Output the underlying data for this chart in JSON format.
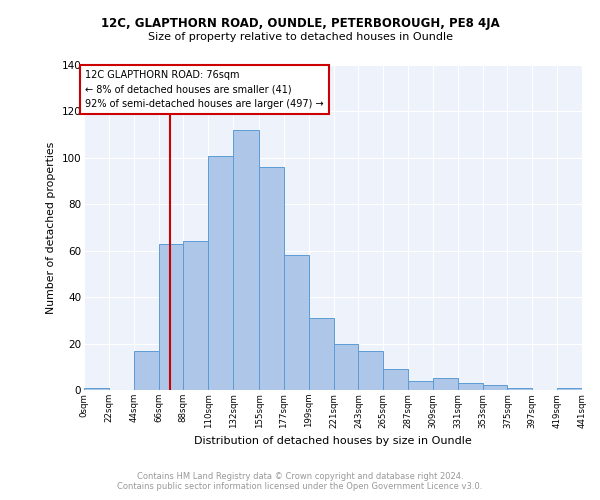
{
  "title1": "12C, GLAPTHORN ROAD, OUNDLE, PETERBOROUGH, PE8 4JA",
  "title2": "Size of property relative to detached houses in Oundle",
  "xlabel": "Distribution of detached houses by size in Oundle",
  "ylabel": "Number of detached properties",
  "footer1": "Contains HM Land Registry data © Crown copyright and database right 2024.",
  "footer2": "Contains public sector information licensed under the Open Government Licence v3.0.",
  "bin_edges": [
    0,
    22,
    44,
    66,
    88,
    110,
    132,
    155,
    177,
    199,
    221,
    243,
    265,
    287,
    309,
    331,
    353,
    375,
    397,
    419,
    441
  ],
  "bar_heights": [
    1,
    0,
    17,
    63,
    64,
    101,
    112,
    96,
    58,
    31,
    20,
    17,
    9,
    4,
    5,
    3,
    2,
    1,
    0,
    1,
    1
  ],
  "bar_color": "#aec6e8",
  "bar_edge_color": "#5b9bd5",
  "bg_color": "#eef3fb",
  "grid_color": "#ffffff",
  "red_line_x": 76,
  "annotation_lines": [
    "12C GLAPTHORN ROAD: 76sqm",
    "← 8% of detached houses are smaller (41)",
    "92% of semi-detached houses are larger (497) →"
  ],
  "annotation_box_color": "#cc0000",
  "ylim": [
    0,
    140
  ],
  "yticks": [
    0,
    20,
    40,
    60,
    80,
    100,
    120,
    140
  ],
  "tick_labels": [
    "0sqm",
    "22sqm",
    "44sqm",
    "66sqm",
    "88sqm",
    "110sqm",
    "132sqm",
    "155sqm",
    "177sqm",
    "199sqm",
    "221sqm",
    "243sqm",
    "265sqm",
    "287sqm",
    "309sqm",
    "331sqm",
    "353sqm",
    "375sqm",
    "397sqm",
    "419sqm",
    "441sqm"
  ]
}
